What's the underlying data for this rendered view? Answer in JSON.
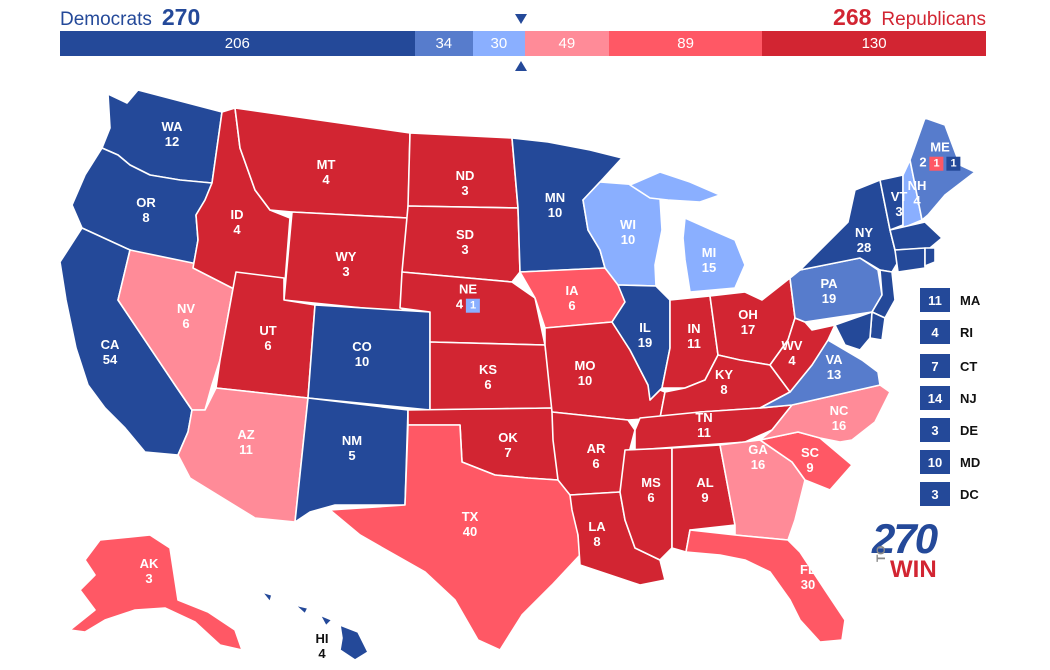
{
  "header": {
    "dem_name": "Democrats",
    "dem_total": "270",
    "rep_total": "268",
    "rep_name": "Republicans"
  },
  "bar": [
    {
      "label": "206",
      "value": 206,
      "color": "#244999"
    },
    {
      "label": "34",
      "value": 34,
      "color": "#577ccc"
    },
    {
      "label": "30",
      "value": 30,
      "color": "#8aafff"
    },
    {
      "label": "49",
      "value": 49,
      "color": "#ff8b98"
    },
    {
      "label": "89",
      "value": 89,
      "color": "#ff5865"
    },
    {
      "label": "130",
      "value": 130,
      "color": "#d22532"
    }
  ],
  "colors": {
    "safe_dem": "#244999",
    "likely_dem": "#577ccc",
    "lean_dem": "#8aafff",
    "lean_rep": "#ff8b98",
    "likely_rep": "#ff5865",
    "safe_rep": "#d22532"
  },
  "states": {
    "WA": {
      "ev": "12",
      "rating": "safe_dem"
    },
    "OR": {
      "ev": "8",
      "rating": "safe_dem"
    },
    "CA": {
      "ev": "54",
      "rating": "safe_dem"
    },
    "NV": {
      "ev": "6",
      "rating": "lean_rep"
    },
    "ID": {
      "ev": "4",
      "rating": "safe_rep"
    },
    "MT": {
      "ev": "4",
      "rating": "safe_rep"
    },
    "WY": {
      "ev": "3",
      "rating": "safe_rep"
    },
    "UT": {
      "ev": "6",
      "rating": "safe_rep"
    },
    "AZ": {
      "ev": "11",
      "rating": "lean_rep"
    },
    "CO": {
      "ev": "10",
      "rating": "safe_dem"
    },
    "NM": {
      "ev": "5",
      "rating": "safe_dem"
    },
    "ND": {
      "ev": "3",
      "rating": "safe_rep"
    },
    "SD": {
      "ev": "3",
      "rating": "safe_rep"
    },
    "NE": {
      "ev": "4",
      "rating": "safe_rep",
      "district": "1",
      "district_rating": "lean_dem"
    },
    "KS": {
      "ev": "6",
      "rating": "safe_rep"
    },
    "OK": {
      "ev": "7",
      "rating": "safe_rep"
    },
    "TX": {
      "ev": "40",
      "rating": "likely_rep"
    },
    "MN": {
      "ev": "10",
      "rating": "safe_dem"
    },
    "IA": {
      "ev": "6",
      "rating": "likely_rep"
    },
    "MO": {
      "ev": "10",
      "rating": "safe_rep"
    },
    "AR": {
      "ev": "6",
      "rating": "safe_rep"
    },
    "LA": {
      "ev": "8",
      "rating": "safe_rep"
    },
    "WI": {
      "ev": "10",
      "rating": "lean_dem"
    },
    "IL": {
      "ev": "19",
      "rating": "safe_dem"
    },
    "MI": {
      "ev": "15",
      "rating": "lean_dem"
    },
    "IN": {
      "ev": "11",
      "rating": "safe_rep"
    },
    "OH": {
      "ev": "17",
      "rating": "safe_rep"
    },
    "KY": {
      "ev": "8",
      "rating": "safe_rep"
    },
    "TN": {
      "ev": "11",
      "rating": "safe_rep"
    },
    "MS": {
      "ev": "6",
      "rating": "safe_rep"
    },
    "AL": {
      "ev": "9",
      "rating": "safe_rep"
    },
    "GA": {
      "ev": "16",
      "rating": "lean_rep"
    },
    "FL": {
      "ev": "30",
      "rating": "likely_rep"
    },
    "SC": {
      "ev": "9",
      "rating": "likely_rep"
    },
    "NC": {
      "ev": "16",
      "rating": "lean_rep"
    },
    "VA": {
      "ev": "13",
      "rating": "likely_dem"
    },
    "WV": {
      "ev": "4",
      "rating": "safe_rep"
    },
    "PA": {
      "ev": "19",
      "rating": "likely_dem"
    },
    "NY": {
      "ev": "28",
      "rating": "safe_dem"
    },
    "VT": {
      "ev": "3",
      "rating": "safe_dem"
    },
    "NH": {
      "ev": "4",
      "rating": "lean_dem"
    },
    "ME": {
      "ev": "2",
      "rating": "likely_dem",
      "district_1": "1",
      "district_1_rating": "likely_rep",
      "district_2": "1",
      "district_2_rating": "safe_dem"
    },
    "AK": {
      "ev": "3",
      "rating": "likely_rep"
    },
    "HI": {
      "ev": "4",
      "rating": "safe_dem"
    }
  },
  "small_states": [
    {
      "abbr": "MA",
      "ev": "11",
      "rating": "safe_dem"
    },
    {
      "abbr": "RI",
      "ev": "4",
      "rating": "safe_dem"
    },
    {
      "abbr": "CT",
      "ev": "7",
      "rating": "safe_dem"
    },
    {
      "abbr": "NJ",
      "ev": "14",
      "rating": "safe_dem"
    },
    {
      "abbr": "DE",
      "ev": "3",
      "rating": "safe_dem"
    },
    {
      "abbr": "MD",
      "ev": "10",
      "rating": "safe_dem"
    },
    {
      "abbr": "DC",
      "ev": "3",
      "rating": "safe_dem"
    }
  ],
  "logo": {
    "number": "270",
    "to": "TO",
    "win": "WIN"
  }
}
